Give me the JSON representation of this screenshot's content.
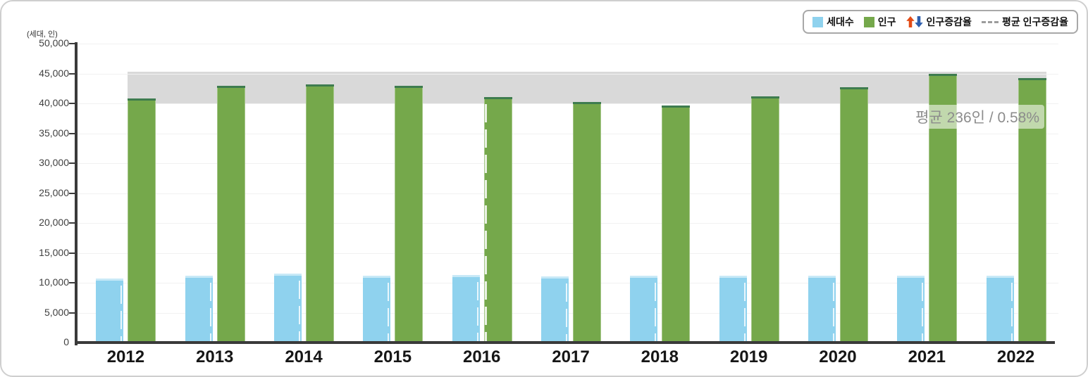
{
  "legend": {
    "items": [
      {
        "label": "세대수",
        "swatch": "square",
        "color": "#8fd2ee"
      },
      {
        "label": "인구",
        "swatch": "square",
        "color": "#75a84b"
      },
      {
        "label": "인구증감율",
        "swatch": "arrows",
        "up_color": "#e34c17",
        "down_color": "#2e5fae"
      },
      {
        "label": "평균 인구증감율",
        "swatch": "dashed-line",
        "color": "#9c9c9c"
      }
    ]
  },
  "chart_data": {
    "type": "bar",
    "title": "",
    "unit_label": "(세대, 인)",
    "categories": [
      "2012",
      "2013",
      "2014",
      "2015",
      "2016",
      "2017",
      "2018",
      "2019",
      "2020",
      "2021",
      "2022"
    ],
    "series": [
      {
        "name": "세대수",
        "color": "#8fd2ee",
        "cap_color": "#c8e9f7",
        "values": [
          10700,
          11180,
          11560,
          11180,
          11260,
          11100,
          11140,
          11210,
          11180,
          11140,
          11140
        ]
      },
      {
        "name": "인구",
        "color": "#75a84b",
        "cap_color": "#3e7c4f",
        "values": [
          40800,
          42950,
          43200,
          42950,
          41050,
          40250,
          39600,
          41150,
          42750,
          44900,
          44250
        ]
      }
    ],
    "y_axis": {
      "min": 0,
      "max": 50000,
      "tick_step": 5000,
      "tick_labels": [
        "0",
        "5,000",
        "10,000",
        "15,000",
        "20,000",
        "25,000",
        "30,000",
        "35,000",
        "40,000",
        "45,000",
        "50,000"
      ]
    },
    "grid": true,
    "legend_position": "top-right",
    "average_band": {
      "from": 39900,
      "to": 45350,
      "color": "#d9d9d9",
      "label": "평균 236인 / 0.58%"
    },
    "dashed_overlay_categories": [
      "2016"
    ],
    "colors": {
      "axis": "#3a3a3a",
      "grid": "#f1f1f1",
      "tick_label": "#404040",
      "year_label": "#161616",
      "annotation_text": "#8c8c8c"
    }
  }
}
